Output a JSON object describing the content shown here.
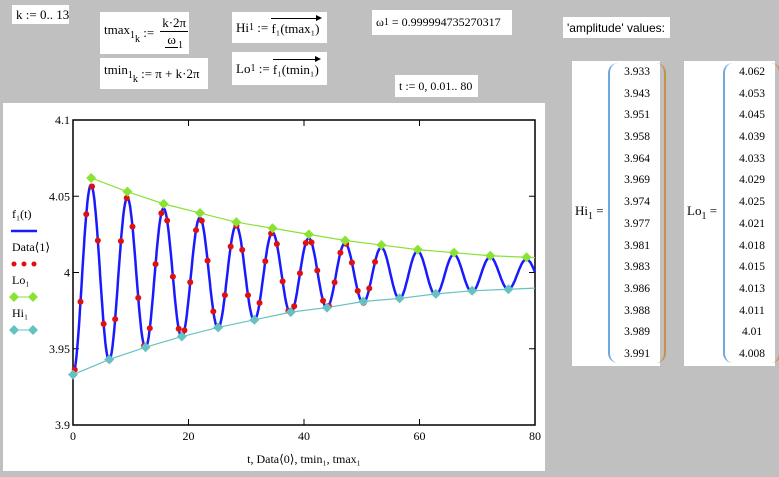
{
  "worksheet": {
    "k_def": "k := 0.. 13",
    "tmax_lhs": "tmax",
    "tmax_num": "k·2π",
    "tmax_den": "ω",
    "tmin_lhs": "tmin",
    "tmin_rhs": ":= π + k·2π",
    "hi_def_lhs": "Hi",
    "hi_def_rhs": "f₁(tmax₁)",
    "lo_def_lhs": "Lo",
    "lo_def_rhs": "f₁(tmin₁)",
    "omega_result": "ω",
    "omega_value": "= 0.999994735270317",
    "t_def": "t := 0, 0.01.. 80",
    "amplitude_label": "'amplitude' values:",
    "sub1": "1",
    "subk": "k",
    "assign": ":="
  },
  "matrices": {
    "hi_label": "Hi",
    "lo_label": "Lo",
    "hi_values": [
      "3.933",
      "3.943",
      "3.951",
      "3.958",
      "3.964",
      "3.969",
      "3.974",
      "3.977",
      "3.981",
      "3.983",
      "3.986",
      "3.988",
      "3.989",
      "3.991"
    ],
    "lo_values": [
      "4.062",
      "4.053",
      "4.045",
      "4.039",
      "4.033",
      "4.029",
      "4.025",
      "4.021",
      "4.018",
      "4.015",
      "4.013",
      "4.011",
      "4.01",
      "4.008"
    ]
  },
  "chart_data": {
    "type": "line",
    "xlabel": "t, Data⟨0⟩, tmin₁, tmax₁",
    "xlim": [
      0,
      80
    ],
    "ylim": [
      3.9,
      4.1
    ],
    "xticks": [
      "0",
      "20",
      "40",
      "60",
      "80"
    ],
    "yticks": [
      "3.9",
      "3.95",
      "4",
      "4.05",
      "4.1"
    ],
    "legend": [
      "f₁(t)",
      "Data⟨1⟩",
      "Lo₁",
      "Hi₁"
    ],
    "legend_placement": "left",
    "colors": {
      "f1": "#1a1aff",
      "data": "#e01010",
      "lo": "#8ae234",
      "hi": "#66c2c2"
    },
    "f1_model": {
      "center": 3.9995,
      "center_offset0": -0.002,
      "amplitude0": 0.0645,
      "decay": 0.0245,
      "omega": 1.0
    },
    "data_samples": {
      "t_start": 0.3,
      "t_step": 1.0,
      "t_end": 52.5
    },
    "hi_series": {
      "t_formula": "k·2π",
      "values": [
        3.933,
        3.943,
        3.951,
        3.958,
        3.964,
        3.969,
        3.974,
        3.977,
        3.981,
        3.983,
        3.986,
        3.988,
        3.989,
        3.991
      ]
    },
    "lo_series": {
      "t_formula": "π + k·2π",
      "values": [
        4.062,
        4.053,
        4.045,
        4.039,
        4.033,
        4.029,
        4.025,
        4.021,
        4.018,
        4.015,
        4.013,
        4.011,
        4.01,
        4.008
      ]
    }
  }
}
